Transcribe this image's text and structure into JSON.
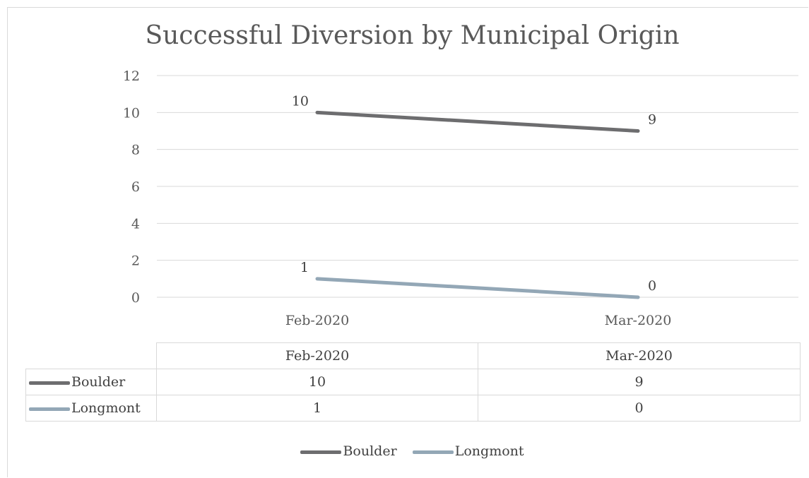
{
  "chart_data": {
    "type": "line",
    "title": "Successful Diversion by Municipal Origin",
    "categories": [
      "Feb-2020",
      "Mar-2020"
    ],
    "series": [
      {
        "name": "Boulder",
        "values": [
          10,
          9
        ],
        "color": "#6d6d6f"
      },
      {
        "name": "Longmont",
        "values": [
          1,
          0
        ],
        "color": "#93a7b6"
      }
    ],
    "ylim": [
      0,
      12
    ],
    "yticks": [
      0,
      2,
      4,
      6,
      8,
      10,
      12
    ],
    "grid": true,
    "data_labels": true,
    "legend": "bottom",
    "data_table": true
  },
  "table": {
    "headers": [
      "Feb-2020",
      "Mar-2020"
    ],
    "rows": [
      {
        "label": "Boulder",
        "values": [
          "10",
          "9"
        ]
      },
      {
        "label": "Longmont",
        "values": [
          "1",
          "0"
        ]
      }
    ]
  },
  "legend": {
    "items": [
      {
        "label": "Boulder"
      },
      {
        "label": "Longmont"
      }
    ]
  }
}
